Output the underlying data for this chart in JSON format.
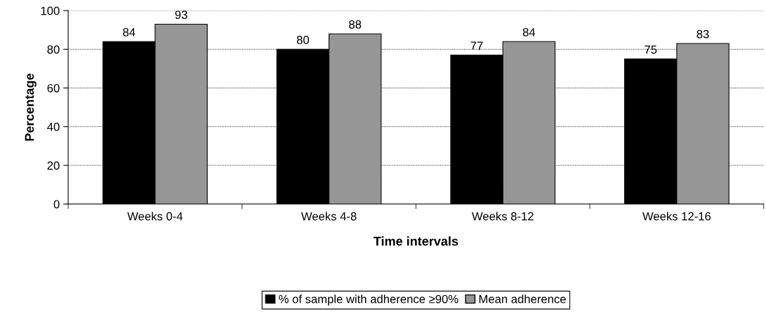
{
  "chart_data": {
    "type": "bar",
    "xlabel": "Time intervals",
    "ylabel": "Percentage",
    "categories": [
      "Weeks 0-4",
      "Weeks 4-8",
      "Weeks 8-12",
      "Weeks 12-16"
    ],
    "series": [
      {
        "name": "% of sample with adherence ≥90%",
        "color": "#000000",
        "values": [
          84,
          80,
          77,
          75
        ]
      },
      {
        "name": "Mean adherence",
        "color": "#969696",
        "values": [
          93,
          88,
          84,
          83
        ]
      }
    ],
    "ylim": [
      0,
      100
    ],
    "yticks": [
      0,
      20,
      40,
      60,
      80,
      100
    ],
    "grid": "y",
    "legend": "bottom",
    "data_labels": true
  }
}
